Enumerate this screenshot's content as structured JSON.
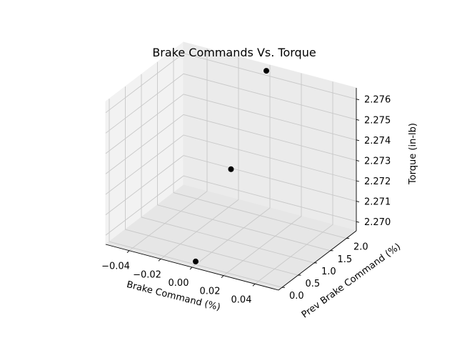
{
  "chart_data": {
    "type": "scatter",
    "projection": "3d",
    "title": "Brake Commands Vs. Torque",
    "xlabel": "Brake Command (%)",
    "ylabel": "Prev Brake Command (%)",
    "zlabel": "Torque (in-lb)",
    "xlim": [
      -0.055,
      0.055
    ],
    "ylim": [
      -0.11,
      2.31
    ],
    "zlim": [
      2.26955,
      2.27655
    ],
    "x_ticks": [
      -0.04,
      -0.02,
      0.0,
      0.02,
      0.04
    ],
    "x_tick_labels": [
      "−0.04",
      "−0.02",
      "0.00",
      "0.02",
      "0.04"
    ],
    "y_ticks": [
      0.0,
      0.5,
      1.0,
      1.5,
      2.0
    ],
    "y_tick_labels": [
      "0.0",
      "0.5",
      "1.0",
      "1.5",
      "2.0"
    ],
    "z_ticks": [
      2.27,
      2.271,
      2.272,
      2.273,
      2.274,
      2.275,
      2.276
    ],
    "z_tick_labels": [
      "2.270",
      "2.271",
      "2.272",
      "2.273",
      "2.274",
      "2.275",
      "2.276"
    ],
    "grid": true,
    "marker_color": "#000000",
    "points": [
      {
        "x": 0.0,
        "y": 0.0,
        "z": 2.2697
      },
      {
        "x": 0.0,
        "y": 1.1,
        "z": 2.2729
      },
      {
        "x": 0.0,
        "y": 2.2,
        "z": 2.2764
      }
    ]
  }
}
